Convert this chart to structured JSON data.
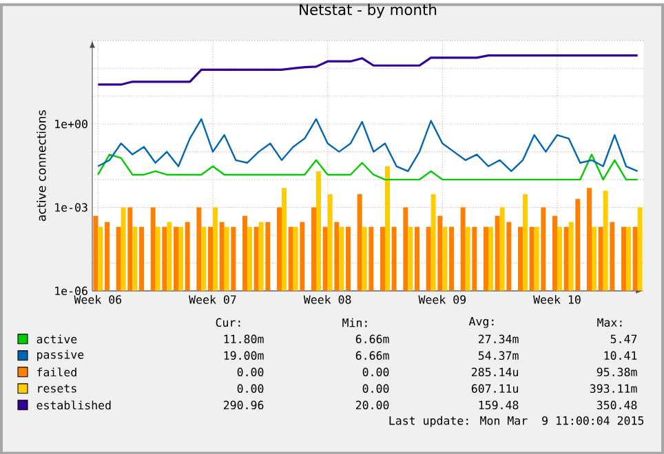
{
  "chart_data": {
    "type": "line",
    "title": "Netstat - by month",
    "ylabel": "active connections",
    "log": "y",
    "grid": true,
    "legend": "bottom",
    "marker": "none",
    "categories": [
      "Week 06",
      null,
      null,
      null,
      null,
      null,
      null,
      null,
      null,
      null,
      "Week 07",
      null,
      null,
      null,
      null,
      null,
      null,
      null,
      null,
      null,
      "Week 08",
      null,
      null,
      null,
      null,
      null,
      null,
      null,
      null,
      null,
      "Week 09",
      null,
      null,
      null,
      null,
      null,
      null,
      null,
      null,
      null,
      "Week 10",
      null,
      null,
      null,
      null,
      null,
      null,
      null
    ],
    "ylim": [
      1e-06,
      1000
    ],
    "yticks": [
      {
        "value": 1e-06,
        "label": "1e-06"
      },
      {
        "value": 1e-05,
        "label": null
      },
      {
        "value": 0.0001,
        "label": null
      },
      {
        "value": 0.001,
        "label": "1e-03"
      },
      {
        "value": 0.01,
        "label": null
      },
      {
        "value": 0.1,
        "label": null
      },
      {
        "value": 1,
        "label": "1e+00"
      },
      {
        "value": 10,
        "label": null
      },
      {
        "value": 100,
        "label": null
      },
      {
        "value": 1000,
        "label": null
      }
    ],
    "series": [
      {
        "name": "active",
        "color": "#00cc00",
        "values": [
          0.015,
          0.08,
          0.06,
          0.015,
          0.015,
          0.02,
          0.015,
          0.015,
          0.015,
          0.015,
          0.03,
          0.015,
          0.015,
          0.015,
          0.015,
          0.015,
          0.015,
          0.015,
          0.015,
          0.05,
          0.015,
          0.015,
          0.015,
          0.04,
          0.015,
          0.01,
          0.01,
          0.01,
          0.01,
          0.02,
          0.01,
          0.01,
          0.01,
          0.01,
          0.01,
          0.01,
          0.01,
          0.01,
          0.01,
          0.01,
          0.01,
          0.01,
          0.01,
          0.08,
          0.01,
          0.05,
          0.01,
          0.01
        ]
      },
      {
        "name": "passive",
        "color": "#0066b3",
        "values": [
          0.03,
          0.05,
          0.2,
          0.08,
          0.15,
          0.04,
          0.1,
          0.03,
          0.3,
          1.5,
          0.1,
          0.4,
          0.05,
          0.04,
          0.1,
          0.2,
          0.05,
          0.15,
          0.3,
          1.5,
          0.2,
          0.1,
          0.2,
          1.2,
          0.1,
          0.2,
          0.03,
          0.02,
          0.1,
          1.3,
          0.2,
          0.1,
          0.05,
          0.08,
          0.03,
          0.05,
          0.02,
          0.05,
          0.4,
          0.1,
          0.4,
          0.3,
          0.04,
          0.05,
          0.03,
          0.4,
          0.03,
          0.02
        ]
      },
      {
        "name": "failed",
        "color": "#ff8000",
        "type": "bar",
        "values": [
          0.0005,
          0.0003,
          0.0002,
          0.001,
          0.0002,
          0.001,
          0.0002,
          0.0002,
          0.0003,
          0.001,
          0.0002,
          0.0003,
          0.0002,
          0.0005,
          0.0002,
          0.0003,
          0.001,
          0.0002,
          0.0003,
          0.001,
          0.0002,
          0.0003,
          0.0002,
          0.003,
          0.0002,
          0.0002,
          0.0002,
          0.001,
          0.0002,
          0.0002,
          0.0005,
          0.0002,
          0.001,
          0.0002,
          0.0002,
          0.0005,
          0.0003,
          0.0002,
          0.0002,
          0.001,
          0.0005,
          0.0002,
          0.002,
          0.005,
          0.0002,
          0.0003,
          0.0002,
          0.0002
        ]
      },
      {
        "name": "resets",
        "color": "#ffcc00",
        "type": "bar",
        "values": [
          0.0002,
          1e-06,
          0.001,
          0.0002,
          1e-06,
          0.0002,
          0.0003,
          0.0002,
          1e-06,
          0.0002,
          0.001,
          0.0002,
          1e-06,
          0.0002,
          0.0003,
          1e-06,
          0.005,
          0.0002,
          1e-06,
          0.02,
          0.003,
          0.0002,
          1e-06,
          0.0002,
          1e-06,
          0.03,
          1e-06,
          0.0002,
          1e-06,
          0.003,
          0.0002,
          1e-06,
          0.0002,
          1e-06,
          0.0002,
          0.001,
          1e-06,
          0.003,
          0.0002,
          1e-06,
          0.0002,
          0.0003,
          1e-06,
          0.0002,
          0.004,
          1e-06,
          0.0002,
          0.001
        ]
      },
      {
        "name": "established",
        "color": "#330099",
        "values": [
          26,
          26,
          26,
          33,
          33,
          33,
          33,
          33,
          33,
          89,
          89,
          89,
          89,
          89,
          89,
          89,
          89,
          100,
          110,
          115,
          178,
          178,
          178,
          230,
          126,
          126,
          126,
          126,
          126,
          240,
          240,
          240,
          240,
          240,
          290,
          290,
          290,
          290,
          290,
          290,
          290,
          290,
          290,
          290,
          290,
          290,
          290,
          290
        ]
      }
    ],
    "annotations": [
      "Cur:",
      "Min:",
      "Avg:",
      "Max:",
      "11.80m",
      "6.66m",
      "27.34m",
      "5.47",
      "19.00m",
      "6.66m",
      "54.37m",
      "10.41",
      "0.00",
      "0.00",
      "285.14u",
      "95.38m",
      "0.00",
      "0.00",
      "607.11u",
      "393.11m",
      "290.96",
      "20.00",
      "159.48",
      "350.48",
      "Last update: Mon Mar  9 11:00:04 2015"
    ]
  }
}
